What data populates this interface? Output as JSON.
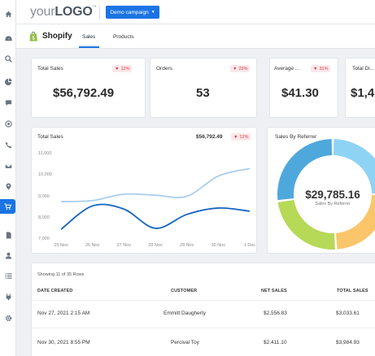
{
  "header": {
    "logo_prefix": "your",
    "logo_main": "LOGO",
    "logo_tm": "™",
    "campaign_button": "Demo campaign"
  },
  "subheader": {
    "title": "Shopify",
    "tabs": [
      {
        "label": "Sales",
        "active": true
      },
      {
        "label": "Products",
        "active": false
      }
    ]
  },
  "sidebar": {
    "icons": [
      "home-icon",
      "dashboard-icon",
      "search-icon",
      "pie-chart-icon",
      "chat-icon",
      "target-icon",
      "phone-icon",
      "email-icon",
      "location-icon",
      "cart-icon",
      "document-icon",
      "user-icon",
      "list-icon",
      "plug-icon",
      "gear-icon"
    ],
    "active_index": 9
  },
  "kpis": [
    {
      "label": "Total Sales",
      "change": "12%",
      "value": "$56,792.49"
    },
    {
      "label": "Orders",
      "change": "23%",
      "value": "53"
    },
    {
      "label": "Average ...",
      "change": "31%",
      "value": "$41.30"
    },
    {
      "label": "Total Di...",
      "change": "",
      "value": "$1,4"
    }
  ],
  "sales_chart": {
    "title": "Total Sales",
    "total": "$56,792.49",
    "change": "12%"
  },
  "chart_data": {
    "type": "line",
    "title": "Total Sales",
    "x": [
      "25 Nov",
      "26 Nov",
      "27 Nov",
      "28 Nov",
      "29 Nov",
      "30 Nov",
      "1 Dec"
    ],
    "y_ticks": [
      "11,000",
      "10,000",
      "9,000",
      "8,000",
      "7,000"
    ],
    "ylim": [
      7000,
      11000
    ],
    "series": [
      {
        "color": "#a9cdee",
        "values": [
          8750,
          8800,
          9100,
          9050,
          9000,
          9950,
          10300
        ]
      },
      {
        "color": "#1565c0",
        "values": [
          7450,
          8550,
          8400,
          7500,
          8150,
          8450,
          8300
        ]
      }
    ]
  },
  "referrer": {
    "title": "Sales By Referrer",
    "total": "$29,785.16",
    "subtitle": "Sales By Referrer",
    "segments": [
      {
        "value": 25,
        "color": "#8fd3f4"
      },
      {
        "value": 24,
        "color": "#fbc56a"
      },
      {
        "value": 24,
        "color": "#b6d957"
      },
      {
        "value": 27,
        "color": "#4fa8dc"
      }
    ]
  },
  "table": {
    "showing": "Showing 11 of 35 Rows",
    "headers": [
      "DATE CREATED",
      "CUSTOMER",
      "NET SALES",
      "TOTAL SALES"
    ],
    "rows": [
      {
        "date": "Nov 27, 2021 2:15 AM",
        "customer": "Emmitt Daugherty",
        "net": "$2,556.83",
        "total": "$3,033.61"
      },
      {
        "date": "Nov 30, 2021 8:55 PM",
        "customer": "Percival Toy",
        "net": "$2,411.10",
        "total": "$3,984.93"
      }
    ]
  }
}
